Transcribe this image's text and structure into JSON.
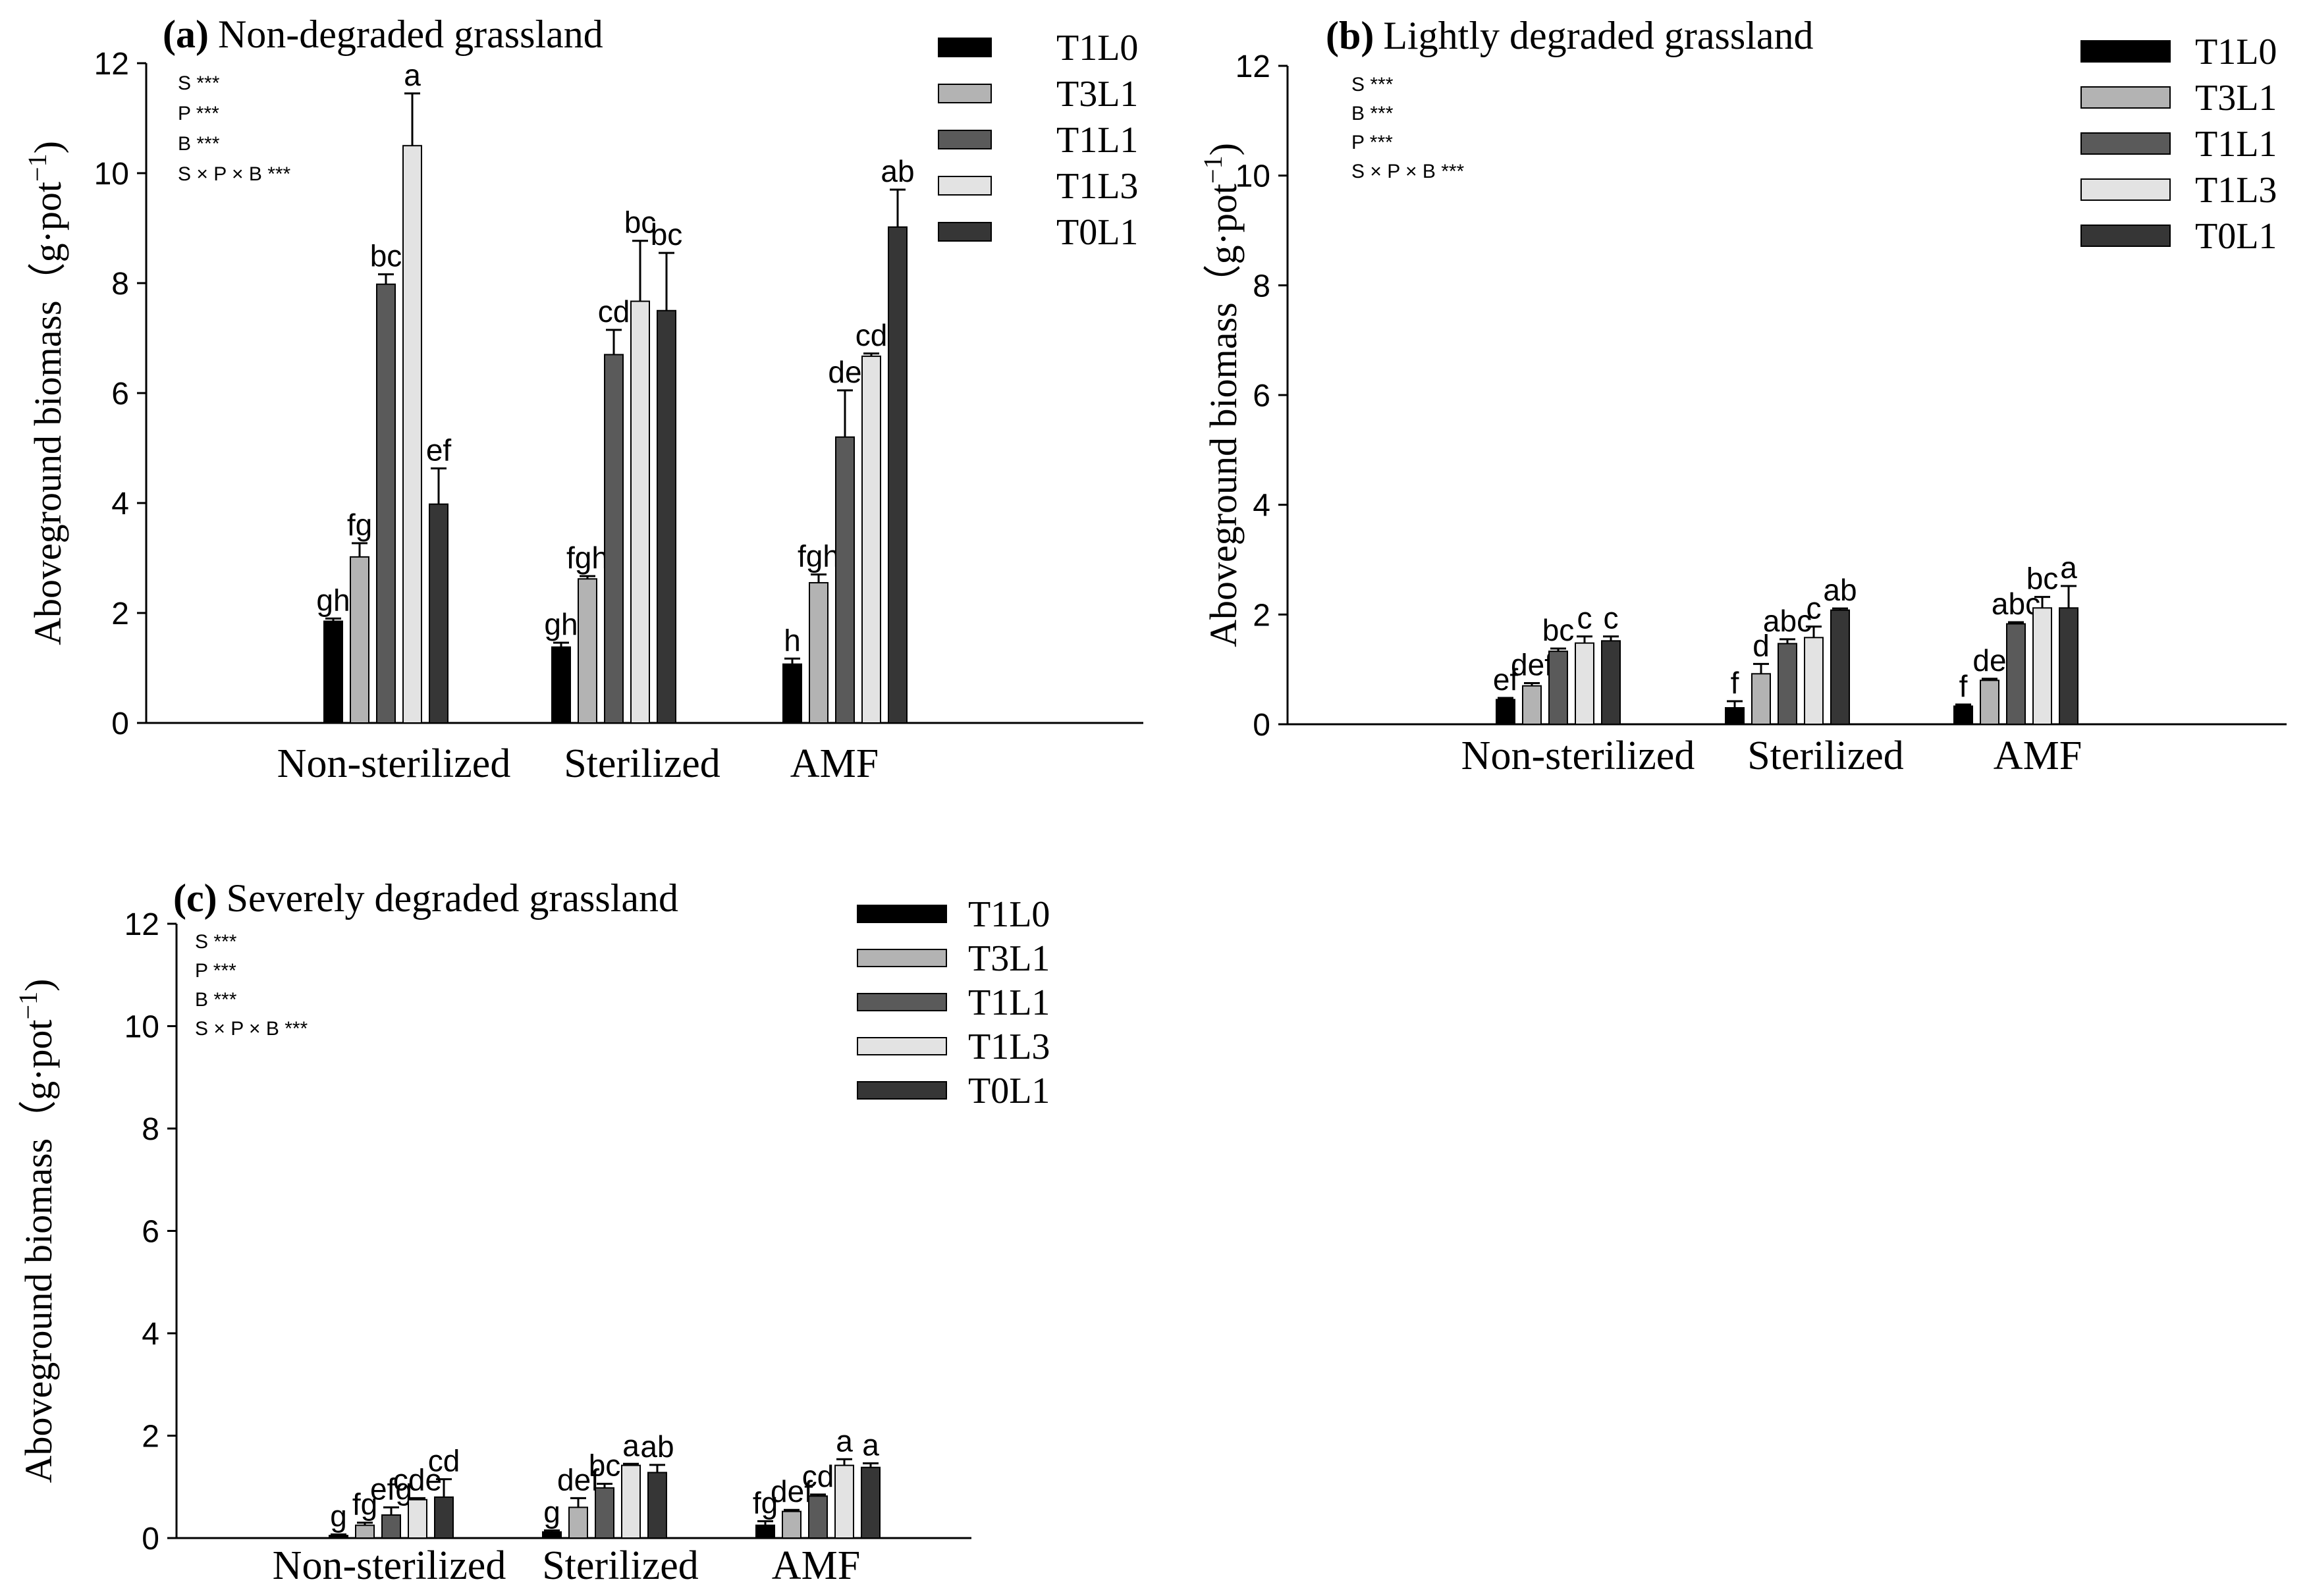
{
  "colors": {
    "T1L0": "#000000",
    "T3L1": "#b3b3b3",
    "T1L1": "#5a5a5a",
    "T1L3": "#e3e3e3",
    "T0L1": "#363636",
    "axis": "#000000",
    "background": "#ffffff"
  },
  "chart_data": [
    {
      "type": "bar",
      "panel_label": "(a)",
      "title": "Non-degraded grassland",
      "ylabel": "Aboveground biomass（g·pot",
      "ylabel_exponent": "−1",
      "ylabel_close": ")",
      "xlabel": "",
      "ylim": [
        0,
        12
      ],
      "yticks": [
        "0",
        "2",
        "4",
        "6",
        "8",
        "10",
        "12"
      ],
      "grid": false,
      "legend_position": "top-right",
      "categories": [
        "Non-sterilized",
        "Sterilized",
        "AMF"
      ],
      "annotations": [
        "S ***",
        "P ***",
        "B ***",
        "S × P × B ***"
      ],
      "series": [
        {
          "name": "T1L0",
          "values": [
            1.85,
            1.38,
            1.07
          ],
          "errors": [
            0.05,
            0.08,
            0.1
          ],
          "labels": [
            "gh",
            "gh",
            "h"
          ]
        },
        {
          "name": "T3L1",
          "values": [
            3.02,
            2.62,
            2.55
          ],
          "errors": [
            0.25,
            0.05,
            0.15
          ],
          "labels": [
            "fg",
            "fgh",
            "fgh"
          ]
        },
        {
          "name": "T1L1",
          "values": [
            7.98,
            6.7,
            5.2
          ],
          "errors": [
            0.18,
            0.45,
            0.85
          ],
          "labels": [
            "bc",
            "cd",
            "de"
          ]
        },
        {
          "name": "T1L3",
          "values": [
            10.5,
            7.67,
            6.67
          ],
          "errors": [
            0.95,
            1.1,
            0.05
          ],
          "labels": [
            "a",
            "bc",
            "cd"
          ]
        },
        {
          "name": "T0L1",
          "values": [
            3.98,
            7.5,
            9.02
          ],
          "errors": [
            0.65,
            1.05,
            0.68
          ],
          "labels": [
            "ef",
            "bc",
            "ab"
          ]
        }
      ]
    },
    {
      "type": "bar",
      "panel_label": "(b)",
      "title": "Lightly degraded grassland",
      "ylabel": "Aboveground biomass（g·pot",
      "ylabel_exponent": "−1",
      "ylabel_close": ")",
      "xlabel": "",
      "ylim": [
        0,
        12
      ],
      "yticks": [
        "0",
        "2",
        "4",
        "6",
        "8",
        "10",
        "12"
      ],
      "grid": false,
      "legend_position": "top-right",
      "categories": [
        "Non-sterilized",
        "Sterilized",
        "AMF"
      ],
      "annotations": [
        "S ***",
        "B ***",
        "P ***",
        "S × P × B ***"
      ],
      "series": [
        {
          "name": "T1L0",
          "values": [
            0.45,
            0.3,
            0.33
          ],
          "errors": [
            0.03,
            0.12,
            0.03
          ],
          "labels": [
            "ef",
            "f",
            "f"
          ]
        },
        {
          "name": "T3L1",
          "values": [
            0.7,
            0.92,
            0.8
          ],
          "errors": [
            0.05,
            0.18,
            0.03
          ],
          "labels": [
            "def",
            "d",
            "de"
          ]
        },
        {
          "name": "T1L1",
          "values": [
            1.33,
            1.47,
            1.83
          ],
          "errors": [
            0.05,
            0.08,
            0.03
          ],
          "labels": [
            "bc",
            "abc",
            "abc"
          ]
        },
        {
          "name": "T1L3",
          "values": [
            1.48,
            1.58,
            2.12
          ],
          "errors": [
            0.12,
            0.2,
            0.2
          ],
          "labels": [
            "c",
            "c",
            "bc"
          ]
        },
        {
          "name": "T0L1",
          "values": [
            1.52,
            2.08,
            2.12
          ],
          "errors": [
            0.08,
            0.03,
            0.4
          ],
          "labels": [
            "c",
            "ab",
            "a"
          ]
        }
      ]
    },
    {
      "type": "bar",
      "panel_label": "(c)",
      "title": "Severely degraded grassland",
      "ylabel": "Aboveground biomass（g·pot",
      "ylabel_exponent": "−1",
      "ylabel_close": ")",
      "xlabel": "",
      "ylim": [
        0,
        12
      ],
      "yticks": [
        "0",
        "2",
        "4",
        "6",
        "8",
        "10",
        "12"
      ],
      "grid": false,
      "legend_position": "top-right",
      "categories": [
        "Non-sterilized",
        "Sterilized",
        "AMF"
      ],
      "annotations": [
        "S ***",
        "P ***",
        "B ***",
        "S × P × B ***"
      ],
      "series": [
        {
          "name": "T1L0",
          "values": [
            0.05,
            0.12,
            0.25
          ],
          "errors": [
            0.02,
            0.03,
            0.08
          ],
          "labels": [
            "g",
            "g",
            "fg"
          ]
        },
        {
          "name": "T3L1",
          "values": [
            0.25,
            0.6,
            0.52
          ],
          "errors": [
            0.05,
            0.18,
            0.03
          ],
          "labels": [
            "fg",
            "def",
            "def"
          ]
        },
        {
          "name": "T1L1",
          "values": [
            0.45,
            0.98,
            0.82
          ],
          "errors": [
            0.15,
            0.08,
            0.03
          ],
          "labels": [
            "efg",
            "bc",
            "cd"
          ]
        },
        {
          "name": "T1L3",
          "values": [
            0.75,
            1.42,
            1.42
          ],
          "errors": [
            0.03,
            0.03,
            0.12
          ],
          "labels": [
            "cde",
            "a",
            "a"
          ]
        },
        {
          "name": "T0L1",
          "values": [
            0.8,
            1.28,
            1.38
          ],
          "errors": [
            0.35,
            0.15,
            0.08
          ],
          "labels": [
            "cd",
            "ab",
            "a"
          ]
        }
      ]
    }
  ]
}
